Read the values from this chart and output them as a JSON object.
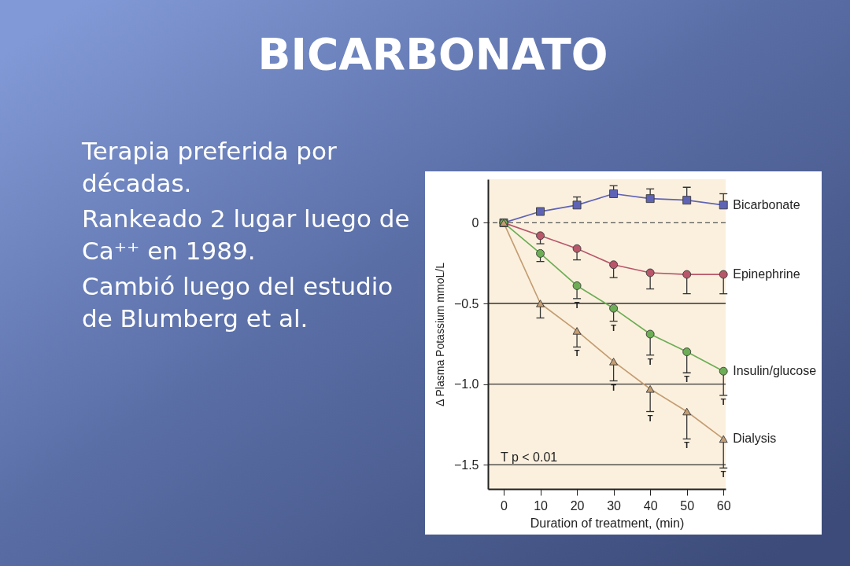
{
  "chart_data": {
    "type": "line",
    "title": "BICARBONATO",
    "xlabel": "Duration of treatment, (min)",
    "ylabel": "Δ Plasma Potassium mmoL/L",
    "xlim": [
      -4.3,
      60.6
    ],
    "xticks": [
      0,
      10,
      20,
      30,
      40,
      50,
      60
    ],
    "ylim": [
      -1.65,
      0.27
    ],
    "yticks": [
      {
        "value": 0,
        "label": "0"
      },
      {
        "value": -0.5,
        "label": "−0.5"
      },
      {
        "value": -1.0,
        "label": "−1.0"
      },
      {
        "value": -1.5,
        "label": "−1.5"
      }
    ],
    "x": [
      0,
      10,
      20,
      30,
      40,
      50,
      60
    ],
    "series": [
      {
        "name": "Bicarbonate",
        "color": "#5f63b6",
        "marker": "square",
        "values": [
          0,
          0.07,
          0.11,
          0.18,
          0.15,
          0.14,
          0.11
        ],
        "errors": [
          null,
          [
            0.07,
            0.09
          ],
          [
            0.11,
            0.16
          ],
          [
            0.18,
            0.23
          ],
          [
            0.15,
            0.21
          ],
          [
            0.14,
            0.22
          ],
          [
            0.11,
            0.18
          ]
        ]
      },
      {
        "name": "Epinephrine",
        "color": "#b8566a",
        "marker": "circle",
        "values": [
          0,
          -0.08,
          -0.16,
          -0.26,
          -0.31,
          -0.32,
          -0.32
        ],
        "errors": [
          null,
          [
            -0.13,
            -0.08
          ],
          [
            -0.23,
            -0.16
          ],
          [
            -0.34,
            -0.26
          ],
          [
            -0.41,
            -0.31
          ],
          [
            -0.44,
            -0.32
          ],
          [
            -0.44,
            -0.32
          ]
        ]
      },
      {
        "name": "Insulin/glucose",
        "color": "#6cad55",
        "marker": "circle",
        "values": [
          0,
          -0.19,
          -0.39,
          -0.53,
          -0.69,
          -0.8,
          -0.92
        ],
        "errors": [
          null,
          [
            -0.24,
            -0.19
          ],
          [
            -0.47,
            -0.39
          ],
          [
            -0.61,
            -0.53
          ],
          [
            -0.82,
            -0.69
          ],
          [
            -0.93,
            -0.8
          ],
          [
            -1.07,
            -0.92
          ]
        ]
      },
      {
        "name": "Dialysis",
        "color": "#c49d72",
        "marker": "triangle",
        "values": [
          0,
          -0.5,
          -0.67,
          -0.86,
          -1.03,
          -1.17,
          -1.34
        ],
        "errors": [
          null,
          [
            -0.59,
            -0.5
          ],
          [
            -0.77,
            -0.67
          ],
          [
            -0.98,
            -0.86
          ],
          [
            -1.17,
            -1.03
          ],
          [
            -1.34,
            -1.17
          ],
          [
            -1.52,
            -1.34
          ]
        ]
      }
    ],
    "ref_lines": [
      {
        "axis": "y",
        "value": 0,
        "line_style": "dashed",
        "color": "#555555"
      },
      {
        "axis": "y",
        "value": -0.5,
        "color": "#333333"
      },
      {
        "axis": "y",
        "value": -1.0,
        "color": "#333333"
      },
      {
        "axis": "y",
        "value": -1.5,
        "color": "#333333"
      }
    ],
    "annotations": [
      "Terapia preferida por\ndécadas.",
      "Rankeado 2 lugar luego de\nCa⁺⁺ en 1989.",
      "Cambió luego del estudio\nde Blumberg et al.",
      "T p < 0.01",
      {
        "text": "T",
        "x": 20,
        "y": -0.47
      },
      {
        "text": "T",
        "x": 30,
        "y": -0.61
      },
      {
        "text": "T",
        "x": 40,
        "y": -0.82
      },
      {
        "text": "T",
        "x": 50,
        "y": -0.93
      },
      {
        "text": "T",
        "x": 60,
        "y": -1.07
      },
      {
        "text": "T",
        "x": 20,
        "y": -0.77
      },
      {
        "text": "T",
        "x": 30,
        "y": -0.98
      },
      {
        "text": "T",
        "x": 40,
        "y": -1.17
      },
      {
        "text": "T",
        "x": 50,
        "y": -1.34
      },
      {
        "text": "T",
        "x": 60,
        "y": -1.52
      }
    ]
  }
}
